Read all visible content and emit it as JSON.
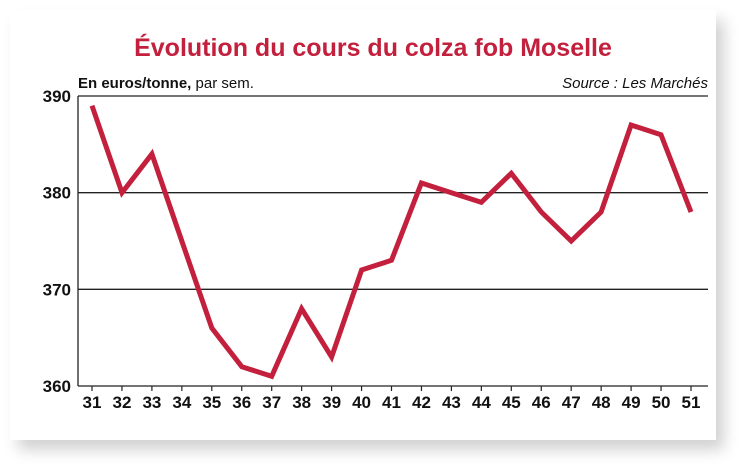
{
  "chart_data": {
    "type": "line",
    "title": "Évolution du cours du colza fob Moselle",
    "ylabel_bold": "En euros/tonne,",
    "ylabel_rest": " par sem.",
    "source": "Source : Les Marchés",
    "categories": [
      "31",
      "32",
      "33",
      "34",
      "35",
      "36",
      "37",
      "38",
      "39",
      "40",
      "41",
      "42",
      "43",
      "44",
      "45",
      "46",
      "47",
      "48",
      "49",
      "50",
      "51"
    ],
    "series": [
      {
        "values": [
          389,
          380,
          384,
          375,
          366,
          362,
          361,
          368,
          363,
          372,
          373,
          381,
          380,
          379,
          382,
          378,
          375,
          378,
          387,
          386,
          378
        ]
      }
    ],
    "yticks": [
      "360",
      "370",
      "380",
      "390"
    ],
    "ylim": [
      360,
      390
    ],
    "grid": true,
    "line_color": "#c3203d",
    "title_color": "#c3203d"
  }
}
